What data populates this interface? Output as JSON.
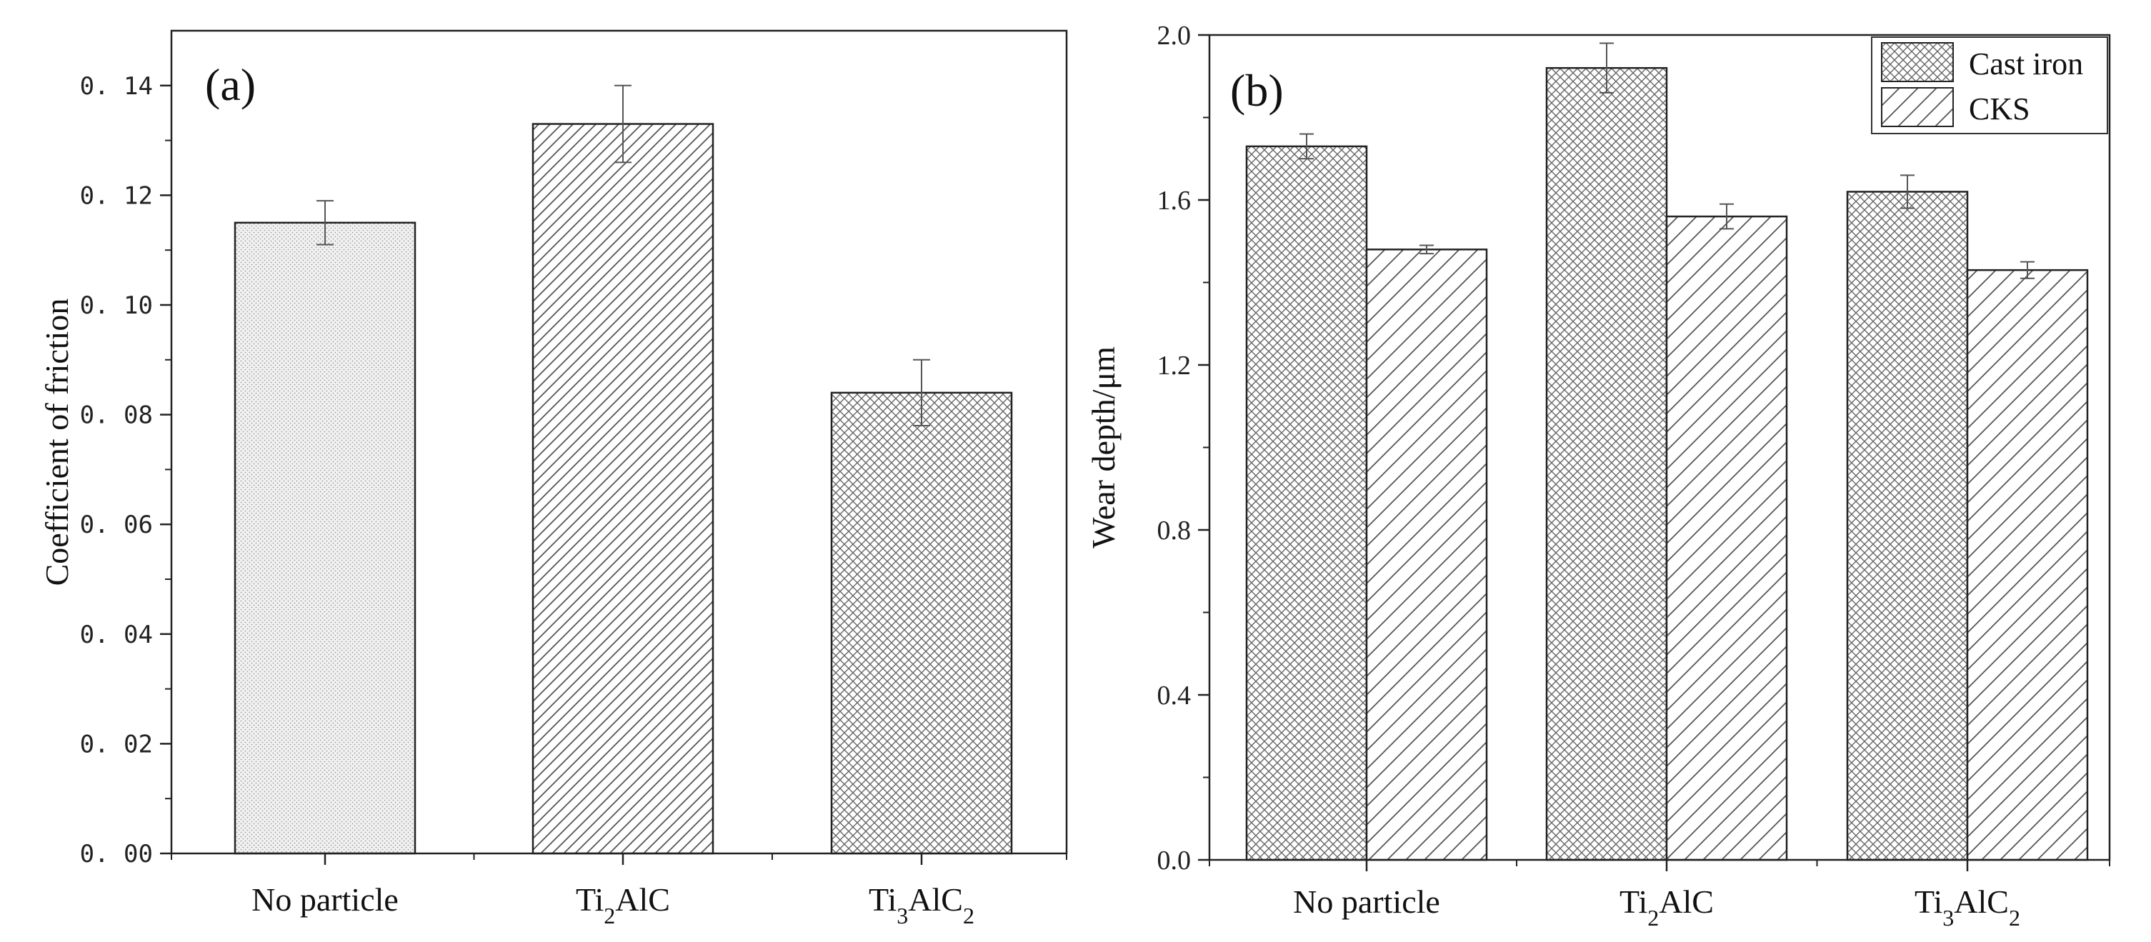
{
  "chart_data": [
    {
      "type": "bar",
      "panel": "(a)",
      "categories": [
        "No particle",
        "Ti2AlC",
        "Ti3AlC2"
      ],
      "category_labels": [
        {
          "main": "No particle",
          "parts": [
            [
              "No particle",
              ""
            ]
          ]
        },
        {
          "main": "Ti2AlC",
          "parts": [
            [
              "Ti",
              ""
            ],
            [
              "2",
              "sub"
            ],
            [
              "AlC",
              ""
            ]
          ]
        },
        {
          "main": "Ti3AlC2",
          "parts": [
            [
              "Ti",
              ""
            ],
            [
              "3",
              "sub"
            ],
            [
              "AlC",
              ""
            ],
            [
              "2",
              "sub"
            ]
          ]
        }
      ],
      "values": [
        0.115,
        0.133,
        0.084
      ],
      "errors": [
        0.004,
        0.007,
        0.006
      ],
      "patterns": [
        "dots",
        "diagonal",
        "crosshatch"
      ],
      "xlabel": "",
      "ylabel": "Coefficient of friction",
      "ylim": [
        0,
        0.15
      ],
      "yticks": [
        0,
        0.02,
        0.04,
        0.06,
        0.08,
        0.1,
        0.12,
        0.14
      ],
      "ytick_labels": [
        "0. 00",
        "0. 02",
        "0. 04",
        "0. 06",
        "0. 08",
        "0. 10",
        "0. 12",
        "0. 14"
      ]
    },
    {
      "type": "bar",
      "panel": "(b)",
      "categories": [
        "No particle",
        "Ti2AlC",
        "Ti3AlC2"
      ],
      "category_labels": [
        {
          "main": "No particle",
          "parts": [
            [
              "No particle",
              ""
            ]
          ]
        },
        {
          "main": "Ti2AlC",
          "parts": [
            [
              "Ti",
              ""
            ],
            [
              "2",
              "sub"
            ],
            [
              "AlC",
              ""
            ]
          ]
        },
        {
          "main": "Ti3AlC2",
          "parts": [
            [
              "Ti",
              ""
            ],
            [
              "3",
              "sub"
            ],
            [
              "AlC",
              ""
            ],
            [
              "2",
              "sub"
            ]
          ]
        }
      ],
      "series": [
        {
          "name": "Cast iron",
          "values": [
            1.73,
            1.92,
            1.62
          ],
          "errors": [
            0.03,
            0.06,
            0.04
          ],
          "pattern": "crosshatch"
        },
        {
          "name": "CKS",
          "values": [
            1.48,
            1.56,
            1.43
          ],
          "errors": [
            0.01,
            0.03,
            0.02
          ],
          "pattern": "diagonal-wide"
        }
      ],
      "xlabel": "",
      "ylabel": "Wear depth/μm",
      "ylim": [
        0,
        2.0
      ],
      "yticks": [
        0,
        0.4,
        0.8,
        1.2,
        1.6,
        2.0
      ],
      "ytick_labels": [
        "0.0",
        "0.4",
        "0.8",
        "1.2",
        "1.6",
        "2.0"
      ],
      "legend": "top-right"
    }
  ]
}
